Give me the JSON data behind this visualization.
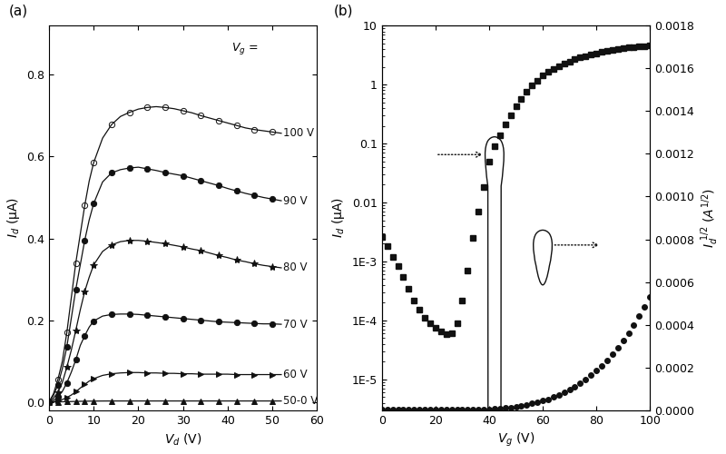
{
  "panel_a": {
    "xlabel": "V_d (V)",
    "ylabel": "I_d (μA)",
    "xlim": [
      0,
      60
    ],
    "ylim": [
      -0.02,
      0.92
    ],
    "yticks": [
      0.0,
      0.2,
      0.4,
      0.6,
      0.8
    ],
    "xticks": [
      0,
      10,
      20,
      30,
      40,
      50,
      60
    ],
    "curves": [
      {
        "label": "100 V",
        "marker": "o",
        "fillstyle": "none",
        "vd": [
          0,
          1,
          2,
          3,
          4,
          5,
          6,
          7,
          8,
          9,
          10,
          12,
          14,
          16,
          18,
          20,
          22,
          24,
          26,
          28,
          30,
          32,
          34,
          36,
          38,
          40,
          42,
          44,
          46,
          48,
          50,
          52
        ],
        "id": [
          0,
          0.02,
          0.055,
          0.1,
          0.17,
          0.255,
          0.34,
          0.41,
          0.48,
          0.54,
          0.585,
          0.645,
          0.678,
          0.698,
          0.708,
          0.716,
          0.72,
          0.722,
          0.72,
          0.717,
          0.712,
          0.707,
          0.7,
          0.694,
          0.688,
          0.682,
          0.676,
          0.67,
          0.666,
          0.663,
          0.66,
          0.657
        ]
      },
      {
        "label": "90 V",
        "marker": "o",
        "fillstyle": "full",
        "vd": [
          0,
          1,
          2,
          3,
          4,
          5,
          6,
          7,
          8,
          9,
          10,
          12,
          14,
          16,
          18,
          20,
          22,
          24,
          26,
          28,
          30,
          32,
          34,
          36,
          38,
          40,
          42,
          44,
          46,
          48,
          50,
          52
        ],
        "id": [
          0,
          0.016,
          0.042,
          0.082,
          0.135,
          0.205,
          0.275,
          0.335,
          0.395,
          0.445,
          0.485,
          0.538,
          0.56,
          0.568,
          0.572,
          0.574,
          0.57,
          0.566,
          0.561,
          0.557,
          0.553,
          0.547,
          0.541,
          0.535,
          0.529,
          0.522,
          0.516,
          0.51,
          0.505,
          0.5,
          0.496,
          0.492
        ]
      },
      {
        "label": "80 V",
        "marker": "*",
        "fillstyle": "full",
        "vd": [
          0,
          1,
          2,
          3,
          4,
          5,
          6,
          7,
          8,
          9,
          10,
          12,
          14,
          16,
          18,
          20,
          22,
          24,
          26,
          28,
          30,
          32,
          34,
          36,
          38,
          40,
          42,
          44,
          46,
          48,
          50,
          52
        ],
        "id": [
          0,
          0.009,
          0.024,
          0.048,
          0.085,
          0.127,
          0.175,
          0.225,
          0.27,
          0.305,
          0.335,
          0.368,
          0.384,
          0.392,
          0.395,
          0.395,
          0.393,
          0.39,
          0.387,
          0.383,
          0.379,
          0.374,
          0.37,
          0.364,
          0.358,
          0.353,
          0.347,
          0.343,
          0.338,
          0.334,
          0.331,
          0.328
        ]
      },
      {
        "label": "70 V",
        "marker": "o",
        "fillstyle": "full",
        "vd": [
          0,
          1,
          2,
          3,
          4,
          5,
          6,
          7,
          8,
          9,
          10,
          12,
          14,
          16,
          18,
          20,
          22,
          24,
          26,
          28,
          30,
          32,
          34,
          36,
          38,
          40,
          42,
          44,
          46,
          48,
          50,
          52
        ],
        "id": [
          0,
          0.004,
          0.012,
          0.026,
          0.047,
          0.073,
          0.103,
          0.138,
          0.162,
          0.183,
          0.198,
          0.21,
          0.214,
          0.215,
          0.215,
          0.214,
          0.212,
          0.21,
          0.208,
          0.206,
          0.204,
          0.202,
          0.2,
          0.198,
          0.196,
          0.195,
          0.194,
          0.193,
          0.192,
          0.191,
          0.191,
          0.19
        ]
      },
      {
        "label": "60 V",
        "marker": ">",
        "fillstyle": "full",
        "vd": [
          0,
          1,
          2,
          3,
          4,
          5,
          6,
          7,
          8,
          9,
          10,
          12,
          14,
          16,
          18,
          20,
          22,
          24,
          26,
          28,
          30,
          32,
          34,
          36,
          38,
          40,
          42,
          44,
          46,
          48,
          50,
          52
        ],
        "id": [
          0,
          0.001,
          0.003,
          0.006,
          0.011,
          0.017,
          0.025,
          0.034,
          0.043,
          0.051,
          0.057,
          0.065,
          0.069,
          0.071,
          0.072,
          0.072,
          0.071,
          0.071,
          0.07,
          0.07,
          0.069,
          0.069,
          0.068,
          0.068,
          0.068,
          0.068,
          0.067,
          0.067,
          0.067,
          0.067,
          0.067,
          0.067
        ]
      },
      {
        "label": "50-0 V",
        "marker": "^",
        "fillstyle": "full",
        "vd": [
          0,
          1,
          2,
          3,
          4,
          5,
          6,
          7,
          8,
          9,
          10,
          12,
          14,
          16,
          18,
          20,
          22,
          24,
          26,
          28,
          30,
          32,
          34,
          36,
          38,
          40,
          42,
          44,
          46,
          48,
          50,
          52
        ],
        "id": [
          0,
          0.0001,
          0.0003,
          0.0005,
          0.0008,
          0.0011,
          0.0014,
          0.0017,
          0.0019,
          0.0021,
          0.0022,
          0.0024,
          0.0025,
          0.0025,
          0.0025,
          0.0025,
          0.0025,
          0.0025,
          0.0025,
          0.0025,
          0.0025,
          0.0025,
          0.0025,
          0.0025,
          0.0025,
          0.0025,
          0.0025,
          0.0025,
          0.0025,
          0.0025,
          0.0025,
          0.0025
        ]
      }
    ]
  },
  "panel_b": {
    "xlabel": "V_g (V)",
    "ylabel_left": "I_d (μA)",
    "ylabel_right": "I_d^{1/2} (A^{1/2})",
    "xlim": [
      0,
      100
    ],
    "ylim_log": [
      3e-06,
      10
    ],
    "ylim_right": [
      0.0,
      0.0018
    ],
    "yticks_right": [
      0.0,
      0.0002,
      0.0004,
      0.0006,
      0.0008,
      0.001,
      0.0012,
      0.0014,
      0.0016,
      0.0018
    ],
    "xticks": [
      0,
      20,
      40,
      60,
      80,
      100
    ],
    "vg_sq": [
      0,
      2,
      4,
      6,
      8,
      10,
      12,
      14,
      16,
      18,
      20,
      22,
      24,
      26,
      28,
      30,
      32,
      34,
      36,
      38,
      40,
      42,
      44,
      46,
      48,
      50,
      52,
      54,
      56,
      58,
      60,
      62,
      64,
      66,
      68,
      70,
      72,
      74,
      76,
      78,
      80,
      82,
      84,
      86,
      88,
      90,
      92,
      94,
      96,
      98,
      100
    ],
    "id_sq": [
      0.0026,
      0.0018,
      0.0012,
      0.00085,
      0.00055,
      0.00035,
      0.00022,
      0.00015,
      0.00011,
      9e-05,
      7.5e-05,
      6.5e-05,
      5.8e-05,
      6e-05,
      9e-05,
      0.00022,
      0.0007,
      0.0025,
      0.007,
      0.018,
      0.05,
      0.09,
      0.14,
      0.21,
      0.3,
      0.43,
      0.58,
      0.76,
      0.96,
      1.18,
      1.42,
      1.65,
      1.87,
      2.08,
      2.28,
      2.48,
      2.68,
      2.88,
      3.05,
      3.22,
      3.4,
      3.56,
      3.72,
      3.86,
      4.0,
      4.12,
      4.24,
      4.35,
      4.45,
      4.54,
      4.62
    ],
    "vg_ci": [
      0,
      2,
      4,
      6,
      8,
      10,
      12,
      14,
      16,
      18,
      20,
      22,
      24,
      26,
      28,
      30,
      32,
      34,
      36,
      38,
      40,
      42,
      44,
      46,
      48,
      50,
      52,
      54,
      56,
      58,
      60,
      62,
      64,
      66,
      68,
      70,
      72,
      74,
      76,
      78,
      80,
      82,
      84,
      86,
      88,
      90,
      92,
      94,
      96,
      98,
      100
    ],
    "id_ci_uA": [
      6e-06,
      6e-06,
      6e-06,
      6e-06,
      6e-06,
      6e-06,
      6e-06,
      6e-06,
      6e-06,
      6e-06,
      6e-06,
      6e-06,
      6e-06,
      6e-06,
      6e-06,
      6e-06,
      7e-06,
      8e-06,
      1e-05,
      1.5e-05,
      2.2e-05,
      3.5e-05,
      5.5e-05,
      9e-05,
      0.00015,
      0.00025,
      0.0004,
      0.00065,
      0.00095,
      0.0014,
      0.0019,
      0.0027,
      0.0037,
      0.0052,
      0.0069,
      0.009,
      0.012,
      0.016,
      0.021,
      0.027,
      0.034,
      0.043,
      0.055,
      0.068,
      0.085,
      0.105,
      0.13,
      0.16,
      0.195,
      0.235,
      0.28
    ]
  },
  "color": "#111111",
  "bg_color": "#ffffff"
}
